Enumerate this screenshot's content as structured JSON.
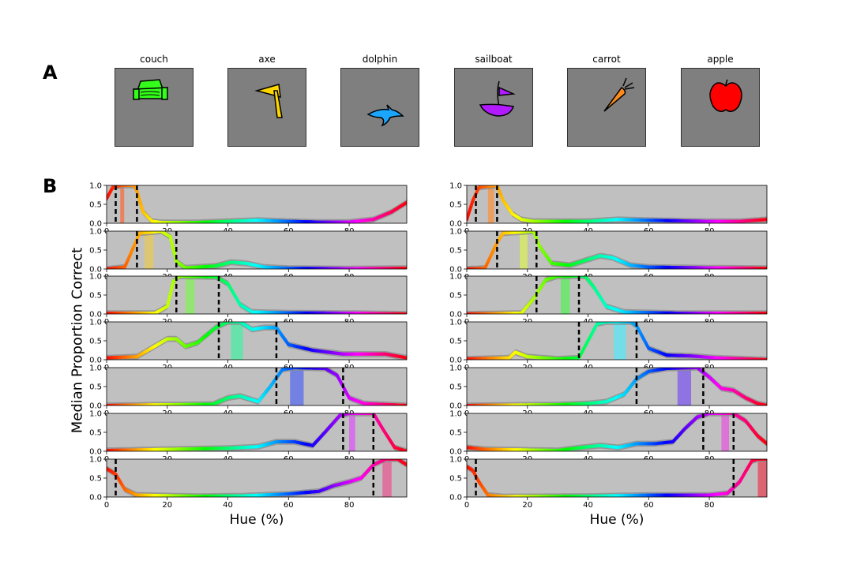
{
  "figure": {
    "panel_a_label": "A",
    "panel_b_label": "B",
    "ylabel": "Median Proportion Correct",
    "xlabel_left": "Hue (%)",
    "xlabel_right": "Hue (%)"
  },
  "objects": [
    {
      "name": "couch",
      "icon": "couch-icon",
      "color": "#33ff1a"
    },
    {
      "name": "axe",
      "icon": "axe-icon",
      "color": "#ffd700"
    },
    {
      "name": "dolphin",
      "icon": "dolphin-icon",
      "color": "#1aa6ff"
    },
    {
      "name": "sailboat",
      "icon": "sailboat-icon",
      "color": "#b21aff"
    },
    {
      "name": "carrot",
      "icon": "carrot-icon",
      "color": "#ff8c1a"
    },
    {
      "name": "apple",
      "icon": "apple-icon",
      "color": "#ff0000"
    }
  ],
  "chart_data": {
    "type": "line",
    "xlim": [
      0,
      99
    ],
    "ylim": [
      0,
      1.0
    ],
    "xticks": [
      0,
      20,
      40,
      60,
      80
    ],
    "yticks": [
      0.0,
      0.5,
      1.0
    ],
    "ytick_labels": [
      "0.0",
      "0.5",
      "1.0"
    ],
    "line_colored_by_hue": true,
    "grid": false,
    "background": "#c0c0c0",
    "band_color": "#8c8c8c",
    "columns": [
      {
        "rows": [
          {
            "bounds": [
              3,
              10
            ],
            "highlight": [
              4.5,
              5.8
            ],
            "highlight_color": "#ee7a55",
            "points": [
              [
                0,
                0.65
              ],
              [
                2,
                0.95
              ],
              [
                5,
                1.0
              ],
              [
                9,
                1.0
              ],
              [
                10,
                0.85
              ],
              [
                12,
                0.3
              ],
              [
                15,
                0.05
              ],
              [
                18,
                0.02
              ],
              [
                30,
                0.02
              ],
              [
                40,
                0.05
              ],
              [
                50,
                0.08
              ],
              [
                60,
                0.05
              ],
              [
                70,
                0.03
              ],
              [
                80,
                0.03
              ],
              [
                88,
                0.1
              ],
              [
                94,
                0.3
              ],
              [
                99,
                0.55
              ]
            ]
          },
          {
            "bounds": [
              10,
              23
            ],
            "highlight": [
              12.5,
              15.5
            ],
            "highlight_color": "#e0c86a",
            "points": [
              [
                0,
                0.0
              ],
              [
                6,
                0.05
              ],
              [
                9,
                0.6
              ],
              [
                11,
                0.95
              ],
              [
                18,
                1.0
              ],
              [
                21,
                0.85
              ],
              [
                23,
                0.2
              ],
              [
                26,
                0.03
              ],
              [
                36,
                0.08
              ],
              [
                41,
                0.18
              ],
              [
                46,
                0.15
              ],
              [
                52,
                0.05
              ],
              [
                60,
                0.02
              ],
              [
                80,
                0.01
              ],
              [
                99,
                0.02
              ]
            ]
          },
          {
            "bounds": [
              23,
              37
            ],
            "highlight": [
              26,
              29
            ],
            "highlight_color": "#8ee86a",
            "points": [
              [
                0,
                0.02
              ],
              [
                16,
                0.02
              ],
              [
                20,
                0.2
              ],
              [
                22,
                0.85
              ],
              [
                24,
                1.0
              ],
              [
                36,
                0.98
              ],
              [
                40,
                0.8
              ],
              [
                44,
                0.25
              ],
              [
                48,
                0.05
              ],
              [
                60,
                0.03
              ],
              [
                80,
                0.02
              ],
              [
                99,
                0.0
              ]
            ]
          },
          {
            "bounds": [
              37,
              56
            ],
            "highlight": [
              41,
              45
            ],
            "highlight_color": "#5ee6a8",
            "points": [
              [
                0,
                0.05
              ],
              [
                10,
                0.08
              ],
              [
                20,
                0.55
              ],
              [
                23,
                0.55
              ],
              [
                26,
                0.35
              ],
              [
                30,
                0.45
              ],
              [
                36,
                0.85
              ],
              [
                40,
                1.0
              ],
              [
                44,
                1.0
              ],
              [
                48,
                0.8
              ],
              [
                52,
                0.85
              ],
              [
                56,
                0.85
              ],
              [
                60,
                0.4
              ],
              [
                68,
                0.25
              ],
              [
                78,
                0.15
              ],
              [
                85,
                0.15
              ],
              [
                92,
                0.15
              ],
              [
                99,
                0.05
              ]
            ]
          },
          {
            "bounds": [
              56,
              78
            ],
            "highlight": [
              60.5,
              65
            ],
            "highlight_color": "#6a7ae6",
            "points": [
              [
                0,
                0.0
              ],
              [
                20,
                0.02
              ],
              [
                35,
                0.03
              ],
              [
                40,
                0.2
              ],
              [
                44,
                0.25
              ],
              [
                50,
                0.1
              ],
              [
                54,
                0.5
              ],
              [
                58,
                0.95
              ],
              [
                62,
                1.0
              ],
              [
                72,
                0.98
              ],
              [
                76,
                0.8
              ],
              [
                80,
                0.2
              ],
              [
                85,
                0.05
              ],
              [
                99,
                0.0
              ]
            ]
          },
          {
            "bounds": [
              78,
              88
            ],
            "highlight": [
              80,
              82
            ],
            "highlight_color": "#d66aec",
            "points": [
              [
                0,
                0.02
              ],
              [
                20,
                0.05
              ],
              [
                40,
                0.08
              ],
              [
                50,
                0.12
              ],
              [
                56,
                0.25
              ],
              [
                62,
                0.25
              ],
              [
                68,
                0.15
              ],
              [
                72,
                0.5
              ],
              [
                77,
                0.95
              ],
              [
                80,
                1.0
              ],
              [
                88,
                1.0
              ],
              [
                91,
                0.6
              ],
              [
                95,
                0.1
              ],
              [
                99,
                0.0
              ]
            ]
          },
          {
            "bounds": [
              3,
              88
            ],
            "highlight": [
              91,
              94
            ],
            "highlight_color": "#e06a9a",
            "points": [
              [
                0,
                0.75
              ],
              [
                3,
                0.6
              ],
              [
                6,
                0.2
              ],
              [
                10,
                0.05
              ],
              [
                30,
                0.02
              ],
              [
                45,
                0.03
              ],
              [
                60,
                0.08
              ],
              [
                70,
                0.15
              ],
              [
                75,
                0.3
              ],
              [
                80,
                0.4
              ],
              [
                84,
                0.5
              ],
              [
                88,
                0.85
              ],
              [
                92,
                1.0
              ],
              [
                96,
                1.0
              ],
              [
                99,
                0.85
              ]
            ]
          }
        ]
      },
      {
        "rows": [
          {
            "bounds": [
              3,
              10
            ],
            "highlight": [
              7,
              9
            ],
            "highlight_color": "#ee9a55",
            "points": [
              [
                0,
                0.1
              ],
              [
                2,
                0.6
              ],
              [
                4,
                0.95
              ],
              [
                10,
                1.0
              ],
              [
                12,
                0.6
              ],
              [
                15,
                0.25
              ],
              [
                18,
                0.1
              ],
              [
                22,
                0.05
              ],
              [
                40,
                0.05
              ],
              [
                50,
                0.1
              ],
              [
                60,
                0.08
              ],
              [
                80,
                0.05
              ],
              [
                90,
                0.05
              ],
              [
                99,
                0.1
              ]
            ]
          },
          {
            "bounds": [
              10,
              23
            ],
            "highlight": [
              17.5,
              20
            ],
            "highlight_color": "#d6e86a",
            "points": [
              [
                0,
                0.0
              ],
              [
                6,
                0.02
              ],
              [
                10,
                0.7
              ],
              [
                12,
                0.95
              ],
              [
                22,
                1.0
              ],
              [
                24,
                0.6
              ],
              [
                28,
                0.15
              ],
              [
                34,
                0.1
              ],
              [
                40,
                0.25
              ],
              [
                44,
                0.35
              ],
              [
                48,
                0.3
              ],
              [
                54,
                0.1
              ],
              [
                60,
                0.05
              ],
              [
                80,
                0.03
              ],
              [
                99,
                0.02
              ]
            ]
          },
          {
            "bounds": [
              23,
              37
            ],
            "highlight": [
              31,
              34
            ],
            "highlight_color": "#6ae86a",
            "points": [
              [
                0,
                0.0
              ],
              [
                18,
                0.02
              ],
              [
                22,
                0.4
              ],
              [
                26,
                0.9
              ],
              [
                30,
                1.0
              ],
              [
                39,
                1.0
              ],
              [
                42,
                0.7
              ],
              [
                46,
                0.2
              ],
              [
                52,
                0.05
              ],
              [
                70,
                0.02
              ],
              [
                99,
                0.02
              ]
            ]
          },
          {
            "bounds": [
              37,
              56
            ],
            "highlight": [
              48.5,
              52.5
            ],
            "highlight_color": "#6ae0ec",
            "points": [
              [
                0,
                0.02
              ],
              [
                14,
                0.05
              ],
              [
                16,
                0.2
              ],
              [
                20,
                0.08
              ],
              [
                30,
                0.02
              ],
              [
                37,
                0.05
              ],
              [
                40,
                0.5
              ],
              [
                43,
                0.95
              ],
              [
                46,
                1.0
              ],
              [
                54,
                1.0
              ],
              [
                56,
                0.9
              ],
              [
                60,
                0.3
              ],
              [
                66,
                0.12
              ],
              [
                74,
                0.1
              ],
              [
                82,
                0.05
              ],
              [
                99,
                0.0
              ]
            ]
          },
          {
            "bounds": [
              56,
              78
            ],
            "highlight": [
              69.5,
              74
            ],
            "highlight_color": "#8a6ae6",
            "points": [
              [
                0,
                0.0
              ],
              [
                30,
                0.02
              ],
              [
                40,
                0.05
              ],
              [
                46,
                0.1
              ],
              [
                52,
                0.3
              ],
              [
                56,
                0.7
              ],
              [
                60,
                0.9
              ],
              [
                66,
                0.98
              ],
              [
                76,
                1.0
              ],
              [
                80,
                0.75
              ],
              [
                84,
                0.45
              ],
              [
                88,
                0.4
              ],
              [
                92,
                0.2
              ],
              [
                96,
                0.05
              ],
              [
                99,
                0.0
              ]
            ]
          },
          {
            "bounds": [
              78,
              88
            ],
            "highlight": [
              84,
              86.5
            ],
            "highlight_color": "#e06ad6",
            "points": [
              [
                0,
                0.1
              ],
              [
                6,
                0.05
              ],
              [
                30,
                0.02
              ],
              [
                38,
                0.1
              ],
              [
                44,
                0.15
              ],
              [
                50,
                0.1
              ],
              [
                56,
                0.2
              ],
              [
                62,
                0.2
              ],
              [
                68,
                0.25
              ],
              [
                72,
                0.6
              ],
              [
                76,
                0.9
              ],
              [
                80,
                1.0
              ],
              [
                88,
                1.0
              ],
              [
                92,
                0.8
              ],
              [
                96,
                0.4
              ],
              [
                99,
                0.2
              ]
            ]
          },
          {
            "bounds": [
              3,
              88
            ],
            "highlight": [
              96,
              99
            ],
            "highlight_color": "#e05a6a",
            "points": [
              [
                0,
                0.8
              ],
              [
                2,
                0.7
              ],
              [
                4,
                0.4
              ],
              [
                7,
                0.05
              ],
              [
                12,
                0.01
              ],
              [
                40,
                0.02
              ],
              [
                60,
                0.05
              ],
              [
                80,
                0.05
              ],
              [
                86,
                0.1
              ],
              [
                90,
                0.4
              ],
              [
                94,
                0.95
              ],
              [
                96,
                1.0
              ],
              [
                99,
                1.0
              ]
            ]
          }
        ]
      }
    ]
  }
}
